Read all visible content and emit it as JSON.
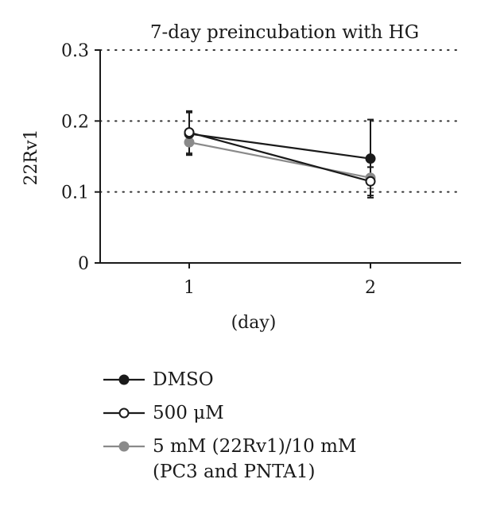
{
  "chart_data": {
    "type": "line",
    "title": "7-day preincubation with HG",
    "xlabel": "(day)",
    "ylabel": "22Rv1",
    "categories": [
      "1",
      "2"
    ],
    "ylim": [
      0,
      0.3
    ],
    "yticks": [
      "0",
      "0.1",
      "0.2",
      "0.3"
    ],
    "grid": "dotted horizontal",
    "legend_position": "bottom",
    "series": [
      {
        "name": "DMSO",
        "values": [
          0.182,
          0.147
        ],
        "error": [
          0.03,
          0.055
        ],
        "marker": "filled-black",
        "color": "#1a1a1a"
      },
      {
        "name": "500 μM",
        "values": [
          0.184,
          0.115
        ],
        "error": [
          0.03,
          0.02
        ],
        "marker": "open",
        "color": "#1a1a1a"
      },
      {
        "name": "5 mM (22Rv1)/10 mM\n(PC3 and PNTA1)",
        "values": [
          0.17,
          0.12
        ],
        "error": [
          0.015,
          0.015
        ],
        "marker": "filled-gray",
        "color": "#8a8a8a"
      }
    ]
  }
}
